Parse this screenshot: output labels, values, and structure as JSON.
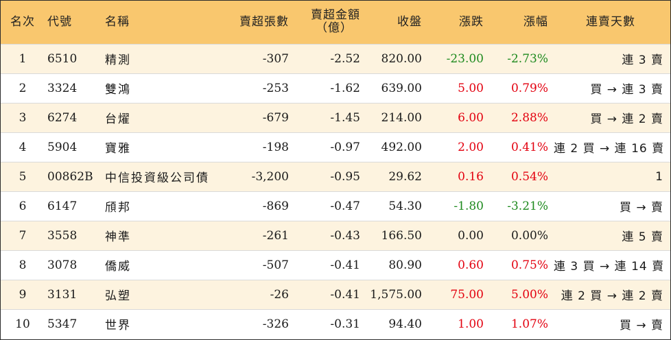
{
  "headers": {
    "rank": "名次",
    "code": "代號",
    "name": "名稱",
    "net_sell_shares": "賣超張數",
    "net_sell_amount_line1": "賣超金額",
    "net_sell_amount_line2": "（億）",
    "close": "收盤",
    "change": "漲跌",
    "change_pct": "漲幅",
    "consecutive": "連賣天數"
  },
  "colors": {
    "header_bg": "#f9c76e",
    "odd_row_bg": "#fdf3df",
    "even_row_bg": "#ffffff",
    "up": "#e3000f",
    "down": "#1e8a1e"
  },
  "rows": [
    {
      "rank": "1",
      "code": "6510",
      "name": "精測",
      "shares": "-307",
      "amount": "-2.52",
      "close": "820.00",
      "change": "-23.00",
      "pct": "-2.73%",
      "trend": "down",
      "consecutive": "連 3 賣"
    },
    {
      "rank": "2",
      "code": "3324",
      "name": "雙鴻",
      "shares": "-253",
      "amount": "-1.62",
      "close": "639.00",
      "change": "5.00",
      "pct": "0.79%",
      "trend": "up",
      "consecutive": "買 → 連 3 賣"
    },
    {
      "rank": "3",
      "code": "6274",
      "name": "台燿",
      "shares": "-679",
      "amount": "-1.45",
      "close": "214.00",
      "change": "6.00",
      "pct": "2.88%",
      "trend": "up",
      "consecutive": "買 → 連 2 賣"
    },
    {
      "rank": "4",
      "code": "5904",
      "name": "寶雅",
      "shares": "-198",
      "amount": "-0.97",
      "close": "492.00",
      "change": "2.00",
      "pct": "0.41%",
      "trend": "up",
      "consecutive": "連 2 買 → 連 16 賣"
    },
    {
      "rank": "5",
      "code": "00862B",
      "name": "中信投資級公司債",
      "shares": "-3,200",
      "amount": "-0.95",
      "close": "29.62",
      "change": "0.16",
      "pct": "0.54%",
      "trend": "up",
      "consecutive": "1"
    },
    {
      "rank": "6",
      "code": "6147",
      "name": "頎邦",
      "shares": "-869",
      "amount": "-0.47",
      "close": "54.30",
      "change": "-1.80",
      "pct": "-3.21%",
      "trend": "down",
      "consecutive": "買 → 賣"
    },
    {
      "rank": "7",
      "code": "3558",
      "name": "神準",
      "shares": "-261",
      "amount": "-0.43",
      "close": "166.50",
      "change": "0.00",
      "pct": "0.00%",
      "trend": "flat",
      "consecutive": "連 5 賣"
    },
    {
      "rank": "8",
      "code": "3078",
      "name": "僑威",
      "shares": "-507",
      "amount": "-0.41",
      "close": "80.90",
      "change": "0.60",
      "pct": "0.75%",
      "trend": "up",
      "consecutive": "連 3 買 → 連 14 賣"
    },
    {
      "rank": "9",
      "code": "3131",
      "name": "弘塑",
      "shares": "-26",
      "amount": "-0.41",
      "close": "1,575.00",
      "change": "75.00",
      "pct": "5.00%",
      "trend": "up",
      "consecutive": "連 2 買 → 連 2 賣"
    },
    {
      "rank": "10",
      "code": "5347",
      "name": "世界",
      "shares": "-326",
      "amount": "-0.31",
      "close": "94.40",
      "change": "1.00",
      "pct": "1.07%",
      "trend": "up",
      "consecutive": "買 → 賣"
    }
  ]
}
